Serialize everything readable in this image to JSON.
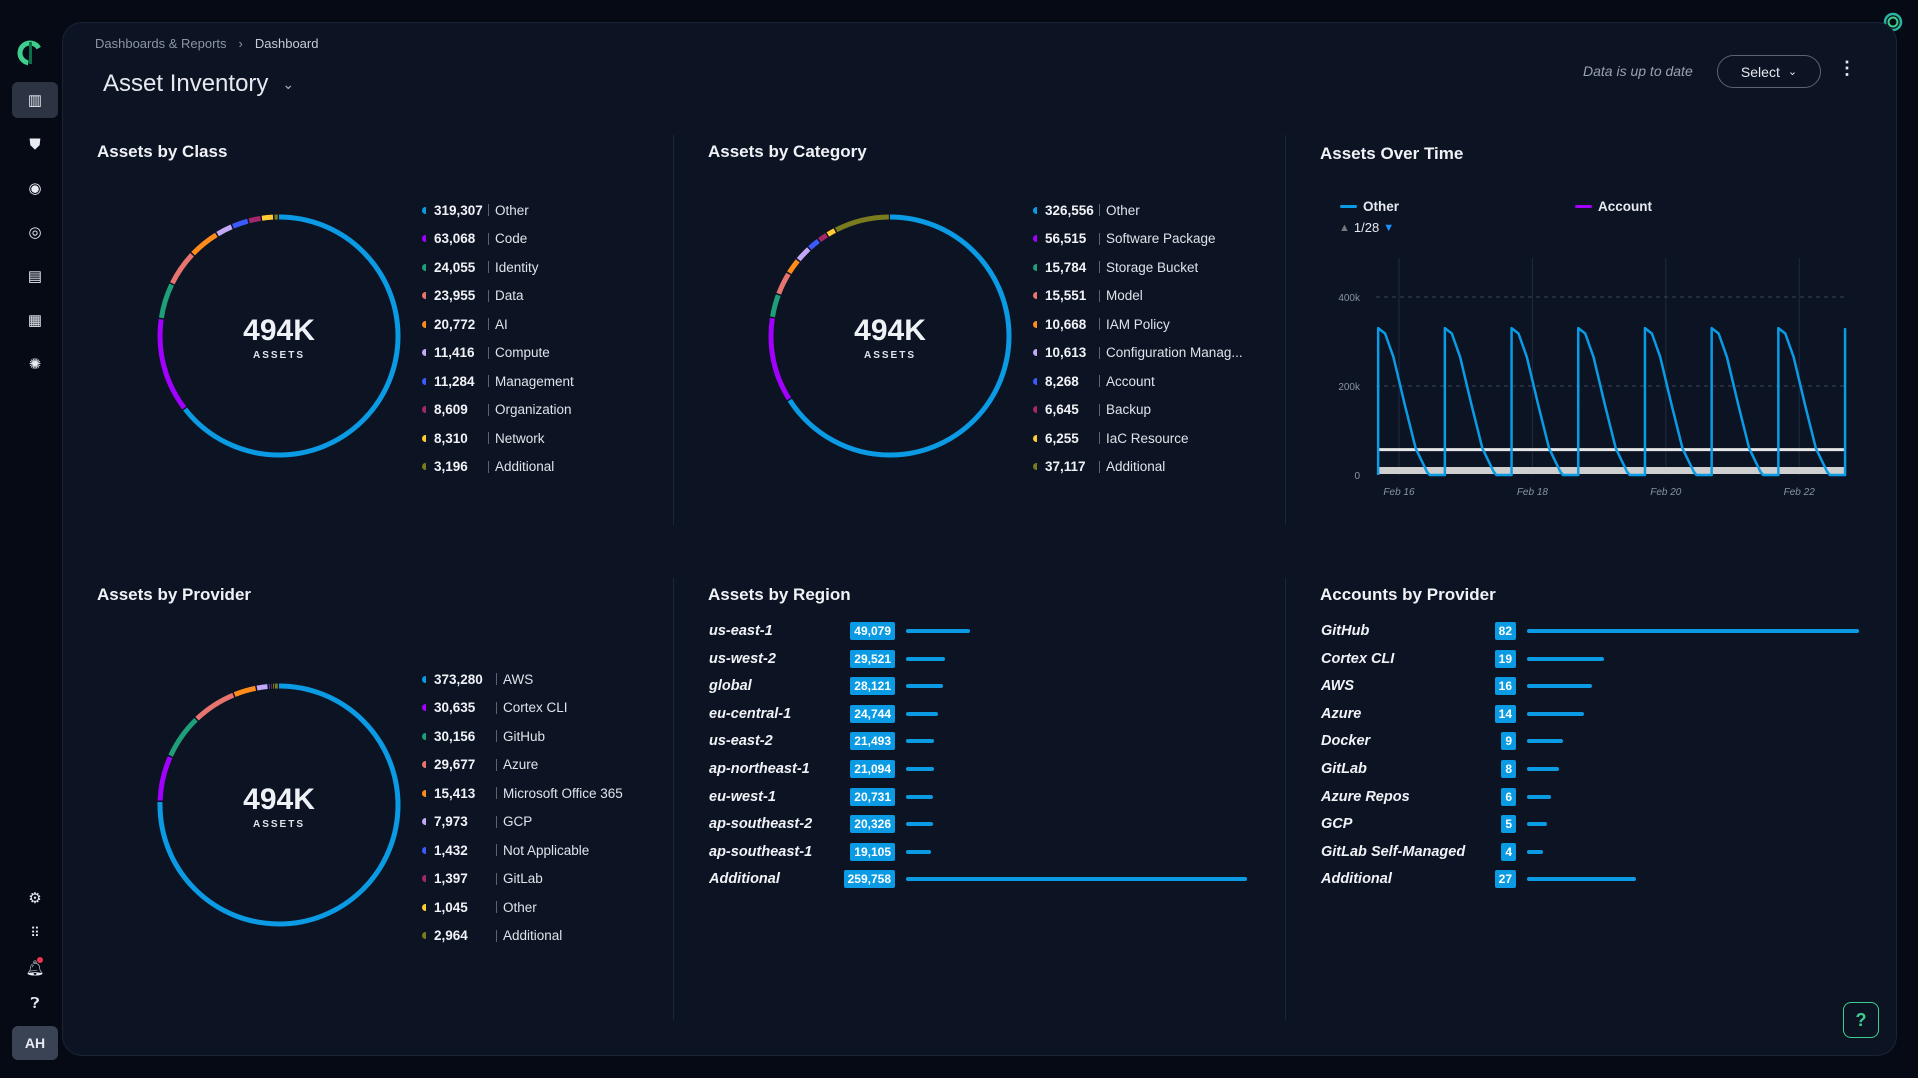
{
  "sidebar": {
    "items": [
      {
        "icon": "dashboard-icon"
      },
      {
        "icon": "shield-alert-icon"
      },
      {
        "icon": "eye-icon"
      },
      {
        "icon": "target-icon"
      },
      {
        "icon": "clipboard-icon"
      },
      {
        "icon": "blocks-icon"
      },
      {
        "icon": "network-icon"
      }
    ],
    "bottom": [
      {
        "icon": "settings-icon"
      },
      {
        "icon": "apps-grid-icon"
      },
      {
        "icon": "bell-icon"
      },
      {
        "icon": "help-icon"
      }
    ],
    "avatar": "AH",
    "notification_color": "#f0334f"
  },
  "breadcrumb": [
    "Dashboards & Reports",
    "Dashboard"
  ],
  "header": {
    "title": "Asset Inventory",
    "status": "Data is up to date",
    "select_label": "Select"
  },
  "colors": {
    "accent": "#0b9be4",
    "purple": "#a100ff",
    "green": "#3ecf8e"
  },
  "donuts": [
    {
      "title": "Assets by Class",
      "total": "494K",
      "unit": "ASSETS",
      "items": [
        {
          "value": 319307,
          "label_value": "319,307",
          "label": "Other",
          "color": "#0b9be4"
        },
        {
          "value": 63068,
          "label_value": "63,068",
          "label": "Code",
          "color": "#a100ff"
        },
        {
          "value": 24055,
          "label_value": "24,055",
          "label": "Identity",
          "color": "#1f9e7a"
        },
        {
          "value": 23955,
          "label_value": "23,955",
          "label": "Data",
          "color": "#e8746f"
        },
        {
          "value": 20772,
          "label_value": "20,772",
          "label": "AI",
          "color": "#ff8c1a"
        },
        {
          "value": 11416,
          "label_value": "11,416",
          "label": "Compute",
          "color": "#c2a8f5"
        },
        {
          "value": 11284,
          "label_value": "11,284",
          "label": "Management",
          "color": "#3d5afe"
        },
        {
          "value": 8609,
          "label_value": "8,609",
          "label": "Organization",
          "color": "#a4266b"
        },
        {
          "value": 8310,
          "label_value": "8,310",
          "label": "Network",
          "color": "#ffcc33"
        },
        {
          "value": 3196,
          "label_value": "3,196",
          "label": "Additional",
          "color": "#7a7a1e"
        }
      ]
    },
    {
      "title": "Assets by Category",
      "total": "494K",
      "unit": "ASSETS",
      "items": [
        {
          "value": 326556,
          "label_value": "326,556",
          "label": "Other",
          "color": "#0b9be4"
        },
        {
          "value": 56515,
          "label_value": "56,515",
          "label": "Software Package",
          "color": "#a100ff"
        },
        {
          "value": 15784,
          "label_value": "15,784",
          "label": "Storage Bucket",
          "color": "#1f9e7a"
        },
        {
          "value": 15551,
          "label_value": "15,551",
          "label": "Model",
          "color": "#e8746f"
        },
        {
          "value": 10668,
          "label_value": "10,668",
          "label": "IAM Policy",
          "color": "#ff8c1a"
        },
        {
          "value": 10613,
          "label_value": "10,613",
          "label": "Configuration Manag...",
          "color": "#c2a8f5"
        },
        {
          "value": 8268,
          "label_value": "8,268",
          "label": "Account",
          "color": "#3d5afe"
        },
        {
          "value": 6645,
          "label_value": "6,645",
          "label": "Backup",
          "color": "#a4266b"
        },
        {
          "value": 6255,
          "label_value": "6,255",
          "label": "IaC Resource",
          "color": "#ffcc33"
        },
        {
          "value": 37117,
          "label_value": "37,117",
          "label": "Additional",
          "color": "#7a7a1e"
        }
      ]
    },
    {
      "title": "Assets by Provider",
      "total": "494K",
      "unit": "ASSETS",
      "items": [
        {
          "value": 373280,
          "label_value": "373,280",
          "label": "AWS",
          "color": "#0b9be4"
        },
        {
          "value": 30635,
          "label_value": "30,635",
          "label": "Cortex CLI",
          "color": "#a100ff"
        },
        {
          "value": 30156,
          "label_value": "30,156",
          "label": "GitHub",
          "color": "#1f9e7a"
        },
        {
          "value": 29677,
          "label_value": "29,677",
          "label": "Azure",
          "color": "#e8746f"
        },
        {
          "value": 15413,
          "label_value": "15,413",
          "label": "Microsoft Office 365",
          "color": "#ff8c1a"
        },
        {
          "value": 7973,
          "label_value": "7,973",
          "label": "GCP",
          "color": "#c2a8f5"
        },
        {
          "value": 1432,
          "label_value": "1,432",
          "label": "Not Applicable",
          "color": "#3d5afe"
        },
        {
          "value": 1397,
          "label_value": "1,397",
          "label": "GitLab",
          "color": "#a4266b"
        },
        {
          "value": 1045,
          "label_value": "1,045",
          "label": "Other",
          "color": "#ffcc33"
        },
        {
          "value": 2964,
          "label_value": "2,964",
          "label": "Additional",
          "color": "#7a7a1e"
        }
      ]
    }
  ],
  "chart_data": {
    "type": "line",
    "title": "Assets Over Time",
    "legend_position": "top-left",
    "legend_page": "1/28",
    "yticks": [
      "0",
      "200k",
      "400k"
    ],
    "ylim": [
      0,
      450000
    ],
    "xticks": [
      "Feb 16",
      "Feb 18",
      "Feb 20",
      "Feb 22"
    ],
    "grid": true,
    "series": [
      {
        "name": "Other",
        "color": "#0b9be4",
        "points": [
          [
            "Feb 15 16:30",
            0
          ],
          [
            "Feb 15 16:30",
            330000
          ],
          [
            "Feb 15 19:00",
            318000
          ],
          [
            "Feb 15 22:00",
            265000
          ],
          [
            "Feb 16 02:00",
            160000
          ],
          [
            "Feb 16 06:00",
            60000
          ],
          [
            "Feb 16 10:00",
            8000
          ],
          [
            "Feb 16 11:00",
            0
          ],
          [
            "Feb 16 16:30",
            0
          ],
          [
            "Feb 16 16:30",
            330000
          ],
          [
            "Feb 16 19:00",
            318000
          ],
          [
            "Feb 16 22:00",
            265000
          ],
          [
            "Feb 17 02:00",
            160000
          ],
          [
            "Feb 17 06:00",
            60000
          ],
          [
            "Feb 17 10:00",
            8000
          ],
          [
            "Feb 17 11:00",
            0
          ],
          [
            "Feb 17 16:30",
            0
          ],
          [
            "Feb 17 16:30",
            330000
          ],
          [
            "Feb 17 19:00",
            318000
          ],
          [
            "Feb 17 22:00",
            265000
          ],
          [
            "Feb 18 02:00",
            160000
          ],
          [
            "Feb 18 06:00",
            60000
          ],
          [
            "Feb 18 10:00",
            8000
          ],
          [
            "Feb 18 11:00",
            0
          ],
          [
            "Feb 18 16:30",
            0
          ],
          [
            "Feb 18 16:30",
            330000
          ],
          [
            "Feb 18 19:00",
            318000
          ],
          [
            "Feb 18 22:00",
            265000
          ],
          [
            "Feb 19 02:00",
            160000
          ],
          [
            "Feb 19 06:00",
            60000
          ],
          [
            "Feb 19 10:00",
            8000
          ],
          [
            "Feb 19 11:00",
            0
          ],
          [
            "Feb 19 16:30",
            0
          ],
          [
            "Feb 19 16:30",
            330000
          ],
          [
            "Feb 19 19:00",
            318000
          ],
          [
            "Feb 19 22:00",
            265000
          ],
          [
            "Feb 20 02:00",
            160000
          ],
          [
            "Feb 20 06:00",
            60000
          ],
          [
            "Feb 20 10:00",
            8000
          ],
          [
            "Feb 20 11:00",
            0
          ],
          [
            "Feb 20 16:30",
            0
          ],
          [
            "Feb 20 16:30",
            330000
          ],
          [
            "Feb 20 19:00",
            318000
          ],
          [
            "Feb 20 22:00",
            265000
          ],
          [
            "Feb 21 02:00",
            160000
          ],
          [
            "Feb 21 06:00",
            60000
          ],
          [
            "Feb 21 10:00",
            8000
          ],
          [
            "Feb 21 11:00",
            0
          ],
          [
            "Feb 21 16:30",
            0
          ],
          [
            "Feb 21 16:30",
            330000
          ],
          [
            "Feb 21 19:00",
            318000
          ],
          [
            "Feb 21 22:00",
            265000
          ],
          [
            "Feb 22 02:00",
            160000
          ],
          [
            "Feb 22 06:00",
            60000
          ],
          [
            "Feb 22 10:00",
            8000
          ],
          [
            "Feb 22 11:00",
            0
          ],
          [
            "Feb 22 16:30",
            0
          ],
          [
            "Feb 22 16:30",
            330000
          ]
        ]
      },
      {
        "name": "Account",
        "color": "#a100ff",
        "points": []
      },
      {
        "color": "#e6e6e6",
        "points": [
          [
            "Feb 15 16:30",
            57000
          ],
          [
            "Feb 22 16:30",
            57000
          ]
        ]
      },
      {
        "color": "#cfcfcf",
        "points": [
          [
            "Feb 15 16:30",
            10000
          ],
          [
            "Feb 22 16:30",
            10000
          ]
        ]
      }
    ]
  },
  "regions": {
    "title": "Assets by Region",
    "items": [
      {
        "label": "us-east-1",
        "value": 49079,
        "label_value": "49,079"
      },
      {
        "label": "us-west-2",
        "value": 29521,
        "label_value": "29,521"
      },
      {
        "label": "global",
        "value": 28121,
        "label_value": "28,121"
      },
      {
        "label": "eu-central-1",
        "value": 24744,
        "label_value": "24,744"
      },
      {
        "label": "us-east-2",
        "value": 21493,
        "label_value": "21,493"
      },
      {
        "label": "ap-northeast-1",
        "value": 21094,
        "label_value": "21,094"
      },
      {
        "label": "eu-west-1",
        "value": 20731,
        "label_value": "20,731"
      },
      {
        "label": "ap-southeast-2",
        "value": 20326,
        "label_value": "20,326"
      },
      {
        "label": "ap-southeast-1",
        "value": 19105,
        "label_value": "19,105"
      },
      {
        "label": "Additional",
        "value": 259758,
        "label_value": "259,758"
      }
    ]
  },
  "accounts": {
    "title": "Accounts by Provider",
    "items": [
      {
        "label": "GitHub",
        "value": 82,
        "label_value": "82"
      },
      {
        "label": "Cortex CLI",
        "value": 19,
        "label_value": "19"
      },
      {
        "label": "AWS",
        "value": 16,
        "label_value": "16"
      },
      {
        "label": "Azure",
        "value": 14,
        "label_value": "14"
      },
      {
        "label": "Docker",
        "value": 9,
        "label_value": "9"
      },
      {
        "label": "GitLab",
        "value": 8,
        "label_value": "8"
      },
      {
        "label": "Azure Repos",
        "value": 6,
        "label_value": "6"
      },
      {
        "label": "GCP",
        "value": 5,
        "label_value": "5"
      },
      {
        "label": "GitLab Self-Managed",
        "value": 4,
        "label_value": "4"
      },
      {
        "label": "Additional",
        "value": 27,
        "label_value": "27"
      }
    ]
  },
  "help_label": "?"
}
